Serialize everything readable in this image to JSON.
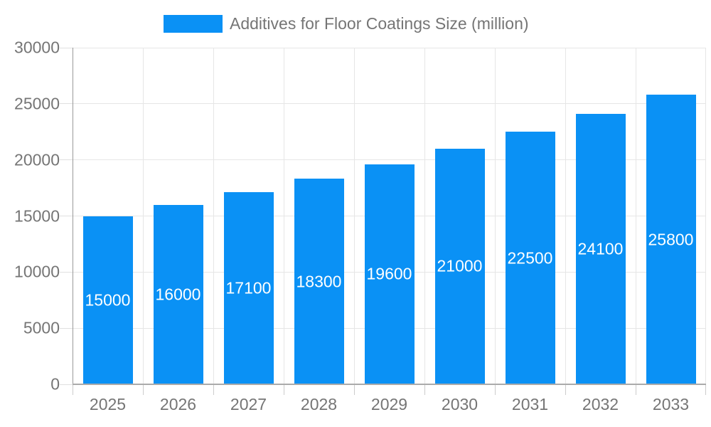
{
  "legend": {
    "label": "Additives for Floor Coatings Size (million)"
  },
  "chart_data": {
    "type": "bar",
    "title": "Additives for Floor Coatings Size (million)",
    "categories": [
      "2025",
      "2026",
      "2027",
      "2028",
      "2029",
      "2030",
      "2031",
      "2032",
      "2033"
    ],
    "values": [
      15000,
      16000,
      17100,
      18300,
      19600,
      21000,
      22500,
      24100,
      25800
    ],
    "value_labels": [
      "15000",
      "16000",
      "17100",
      "18300",
      "19600",
      "21000",
      "22500",
      "24100",
      "25800"
    ],
    "xlabel": "",
    "ylabel": "",
    "ylim": [
      0,
      30000
    ],
    "yticks": [
      0,
      5000,
      10000,
      15000,
      20000,
      25000,
      30000
    ],
    "ytick_labels": [
      "0",
      "5000",
      "10000",
      "15000",
      "20000",
      "25000",
      "30000"
    ],
    "grid": true,
    "legend_position": "top-center",
    "colors": {
      "bar": "#0a91f5",
      "value_label": "#ffffff",
      "axis_text": "#757575",
      "gridline": "#e6e6e6",
      "y_axis_line": "#999999",
      "x_axis_line": "#ababab",
      "background": "#ffffff"
    }
  }
}
